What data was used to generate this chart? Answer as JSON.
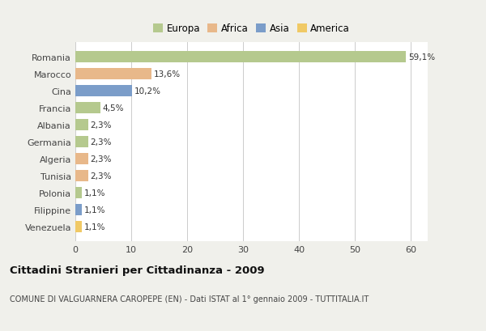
{
  "countries": [
    "Romania",
    "Marocco",
    "Cina",
    "Francia",
    "Albania",
    "Germania",
    "Algeria",
    "Tunisia",
    "Polonia",
    "Filippine",
    "Venezuela"
  ],
  "values": [
    59.1,
    13.6,
    10.2,
    4.5,
    2.3,
    2.3,
    2.3,
    2.3,
    1.1,
    1.1,
    1.1
  ],
  "labels": [
    "59,1%",
    "13,6%",
    "10,2%",
    "4,5%",
    "2,3%",
    "2,3%",
    "2,3%",
    "2,3%",
    "1,1%",
    "1,1%",
    "1,1%"
  ],
  "colors": [
    "#b5c98e",
    "#e8b88a",
    "#7b9dc9",
    "#b5c98e",
    "#b5c98e",
    "#b5c98e",
    "#e8b88a",
    "#e8b88a",
    "#b5c98e",
    "#7b9dc9",
    "#f0c965"
  ],
  "legend_labels": [
    "Europa",
    "Africa",
    "Asia",
    "America"
  ],
  "legend_colors": [
    "#b5c98e",
    "#e8b88a",
    "#7b9dc9",
    "#f0c965"
  ],
  "title": "Cittadini Stranieri per Cittadinanza - 2009",
  "subtitle": "COMUNE DI VALGUARNERA CAROPEPE (EN) - Dati ISTAT al 1° gennaio 2009 - TUTTITALIA.IT",
  "xlim": [
    0,
    63
  ],
  "xticks": [
    0,
    10,
    20,
    30,
    40,
    50,
    60
  ],
  "background_color": "#f0f0eb",
  "bar_background": "#ffffff",
  "grid_color": "#cccccc"
}
